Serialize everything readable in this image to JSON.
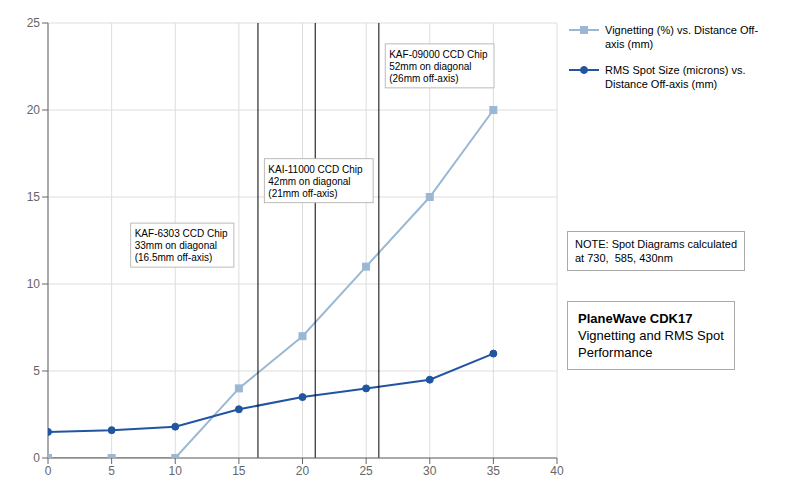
{
  "chart_data": {
    "type": "line",
    "title": "PlaneWave CDK17",
    "subtitle": "Vignetting and RMS Spot\nPerformance",
    "note": "NOTE: Spot Diagrams calculated\nat 730,  585, 430nm",
    "x": [
      0,
      5,
      10,
      15,
      20,
      25,
      30,
      35
    ],
    "series": [
      {
        "name": "Vignetting (%) vs. Distance Off-\naxis (mm)",
        "color": "#9ab8d4",
        "marker": "square",
        "values": [
          0,
          0,
          0,
          4,
          7,
          11,
          15,
          20
        ]
      },
      {
        "name": "RMS Spot Size (microns) vs.\nDistance Off-axis (mm)",
        "color": "#2255a0",
        "marker": "circle",
        "values": [
          1.5,
          1.6,
          1.8,
          2.8,
          3.5,
          4.0,
          4.5,
          6.0
        ]
      }
    ],
    "xlim": [
      0,
      40
    ],
    "ylim": [
      0,
      25
    ],
    "xticks": [
      0,
      5,
      10,
      15,
      20,
      25,
      30,
      35,
      40
    ],
    "yticks": [
      0,
      5,
      10,
      15,
      20,
      25
    ],
    "grid": true,
    "legend": "right",
    "vlines": [
      16.5,
      21.0,
      26.0
    ],
    "annotations": [
      {
        "x": 6.5,
        "y": 13.5,
        "text": "KAF-6303 CCD Chip\n33mm on diagonal\n(16.5mm off-axis)"
      },
      {
        "x": 17.0,
        "y": 17.2,
        "text": "KAI-11000 CCD Chip\n42mm on diagonal\n(21mm off-axis)"
      },
      {
        "x": 26.5,
        "y": 23.8,
        "text": "KAF-09000 CCD Chip\n52mm on diagonal\n(26mm off-axis)"
      }
    ]
  }
}
